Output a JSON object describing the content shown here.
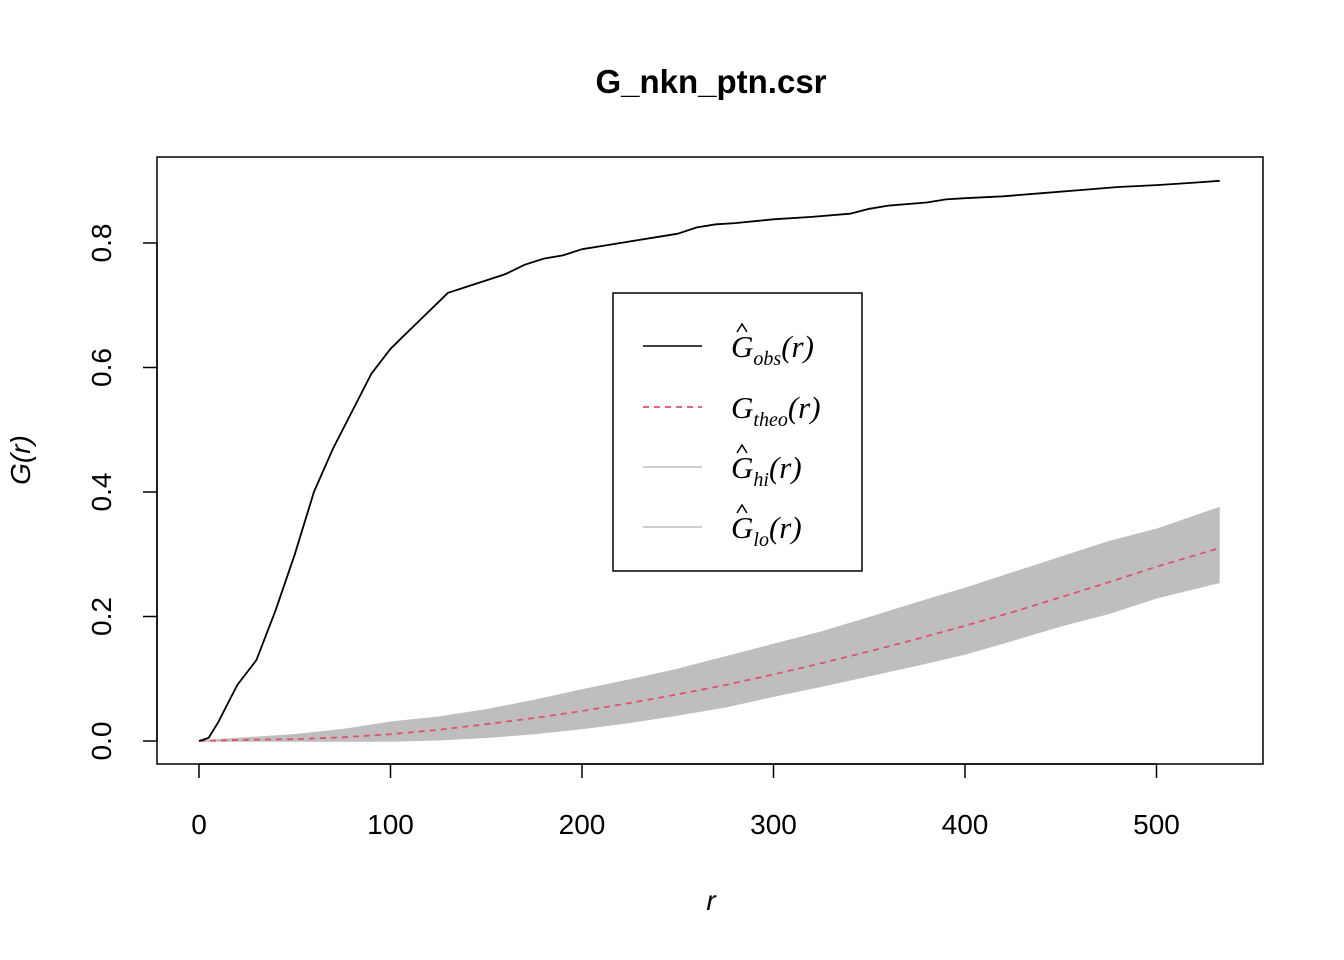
{
  "chart_data": {
    "type": "line",
    "title": "G_nkn_ptn.csr",
    "xlabel": "r",
    "ylabel": "G(r)",
    "xlim": [
      0,
      540
    ],
    "ylim": [
      0,
      0.9
    ],
    "x_ticks": [
      0,
      100,
      200,
      300,
      400,
      500
    ],
    "x_tick_labels": [
      "0",
      "100",
      "200",
      "300",
      "400",
      "500"
    ],
    "y_ticks": [
      0.0,
      0.2,
      0.4,
      0.6,
      0.8
    ],
    "y_tick_labels": [
      "0.0",
      "0.2",
      "0.4",
      "0.6",
      "0.8"
    ],
    "legend_position": "center",
    "colors": {
      "obs": "#000000",
      "theo": "#DF536B",
      "envelope": "#BEBEBE"
    },
    "series": [
      {
        "key": "obs",
        "style": "solid",
        "x": [
          0,
          5,
          10,
          15,
          20,
          30,
          40,
          50,
          60,
          70,
          80,
          90,
          100,
          110,
          120,
          130,
          140,
          150,
          160,
          170,
          180,
          190,
          200,
          210,
          220,
          230,
          240,
          250,
          260,
          270,
          280,
          290,
          300,
          320,
          340,
          350,
          360,
          380,
          390,
          400,
          420,
          440,
          460,
          480,
          500,
          520,
          533
        ],
        "y": [
          0.0,
          0.005,
          0.03,
          0.06,
          0.09,
          0.13,
          0.21,
          0.3,
          0.4,
          0.47,
          0.53,
          0.59,
          0.63,
          0.66,
          0.69,
          0.72,
          0.73,
          0.74,
          0.75,
          0.765,
          0.775,
          0.78,
          0.79,
          0.795,
          0.8,
          0.805,
          0.81,
          0.815,
          0.825,
          0.83,
          0.832,
          0.835,
          0.838,
          0.842,
          0.847,
          0.855,
          0.86,
          0.865,
          0.87,
          0.872,
          0.875,
          0.88,
          0.885,
          0.89,
          0.893,
          0.897,
          0.9
        ]
      },
      {
        "key": "theo",
        "style": "dashed",
        "x": [
          0,
          25,
          50,
          75,
          100,
          125,
          150,
          175,
          200,
          225,
          250,
          275,
          300,
          325,
          350,
          375,
          400,
          425,
          450,
          475,
          500,
          533
        ],
        "y": [
          0.0,
          0.002,
          0.003,
          0.006,
          0.011,
          0.018,
          0.027,
          0.037,
          0.048,
          0.061,
          0.075,
          0.09,
          0.107,
          0.125,
          0.144,
          0.164,
          0.185,
          0.207,
          0.231,
          0.255,
          0.28,
          0.31
        ]
      },
      {
        "key": "hi",
        "style": "solid",
        "x": [
          0,
          25,
          50,
          75,
          100,
          125,
          150,
          175,
          200,
          225,
          250,
          275,
          300,
          325,
          350,
          375,
          400,
          425,
          450,
          475,
          500,
          533
        ],
        "y": [
          0.0,
          0.005,
          0.01,
          0.018,
          0.03,
          0.038,
          0.05,
          0.065,
          0.082,
          0.098,
          0.115,
          0.135,
          0.155,
          0.175,
          0.198,
          0.222,
          0.245,
          0.27,
          0.295,
          0.32,
          0.34,
          0.375
        ]
      },
      {
        "key": "lo",
        "style": "solid",
        "x": [
          0,
          25,
          50,
          75,
          100,
          125,
          150,
          175,
          200,
          225,
          250,
          275,
          300,
          325,
          350,
          375,
          400,
          425,
          450,
          475,
          500,
          533
        ],
        "y": [
          0.0,
          0.0,
          0.0,
          0.0,
          0.0,
          0.002,
          0.006,
          0.012,
          0.02,
          0.03,
          0.042,
          0.055,
          0.072,
          0.088,
          0.105,
          0.122,
          0.14,
          0.162,
          0.185,
          0.205,
          0.23,
          0.255
        ]
      }
    ],
    "legend": [
      {
        "key": "obs",
        "base": "G",
        "hat": true,
        "sub": "obs",
        "arg": "(r)",
        "color": "#000000",
        "dash": false
      },
      {
        "key": "theo",
        "base": "G",
        "hat": false,
        "sub": "theo",
        "arg": "(r)",
        "color": "#DF536B",
        "dash": true
      },
      {
        "key": "hi",
        "base": "G",
        "hat": true,
        "sub": "hi",
        "arg": "(r)",
        "color": "#BEBEBE",
        "dash": false
      },
      {
        "key": "lo",
        "base": "G",
        "hat": true,
        "sub": "lo",
        "arg": "(r)",
        "color": "#BEBEBE",
        "dash": false
      }
    ]
  }
}
